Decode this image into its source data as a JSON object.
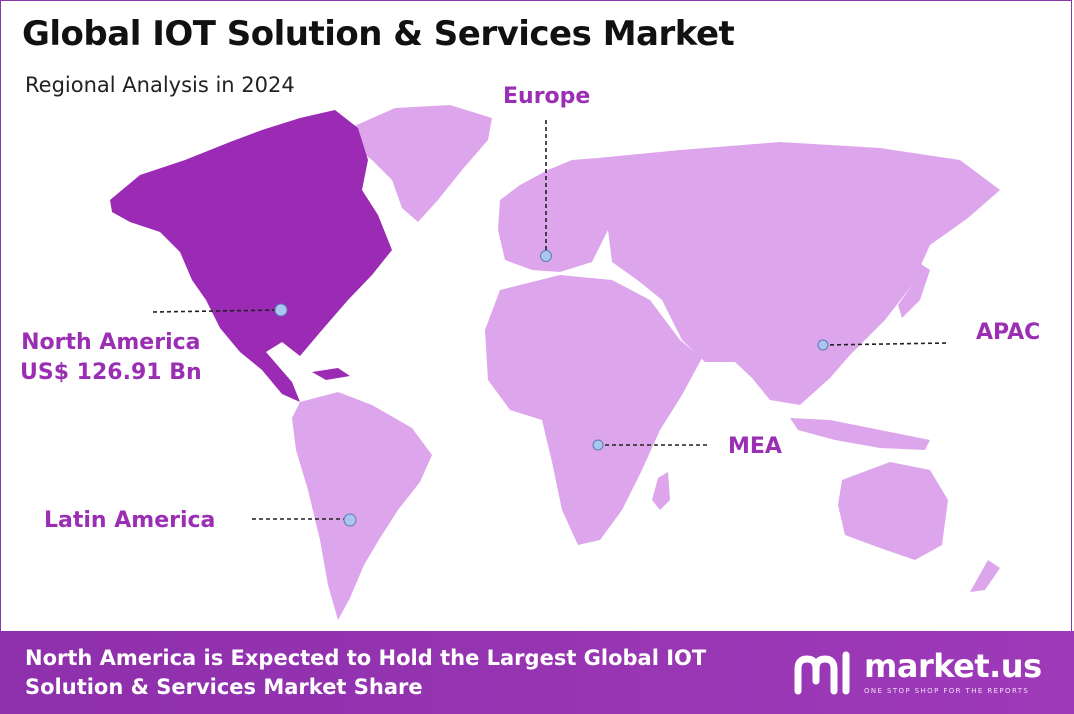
{
  "header": {
    "title": "Global IOT Solution & Services Market",
    "subtitle": "Regional Analysis in 2024"
  },
  "colors": {
    "highlight_region": "#9b2ab5",
    "other_regions": "#dda6ec",
    "label_text": "#9a2fb4",
    "footer_bg": "#9735b3",
    "marker": "#a9c5f0"
  },
  "regions": {
    "north_america": {
      "name": "North America",
      "value": "US$ 126.91 Bn",
      "highlighted": true
    },
    "europe": {
      "name": "Europe",
      "highlighted": false
    },
    "apac": {
      "name": "APAC",
      "highlighted": false
    },
    "mea": {
      "name": "MEA",
      "highlighted": false
    },
    "latin_america": {
      "name": "Latin America",
      "highlighted": false
    }
  },
  "footer": {
    "text": "North America is Expected to Hold the Largest Global IOT Solution & Services Market Share"
  },
  "brand": {
    "name": "market.us",
    "tagline": "ONE STOP SHOP FOR THE REPORTS",
    "logo_icon": "market-us-logo-icon"
  }
}
